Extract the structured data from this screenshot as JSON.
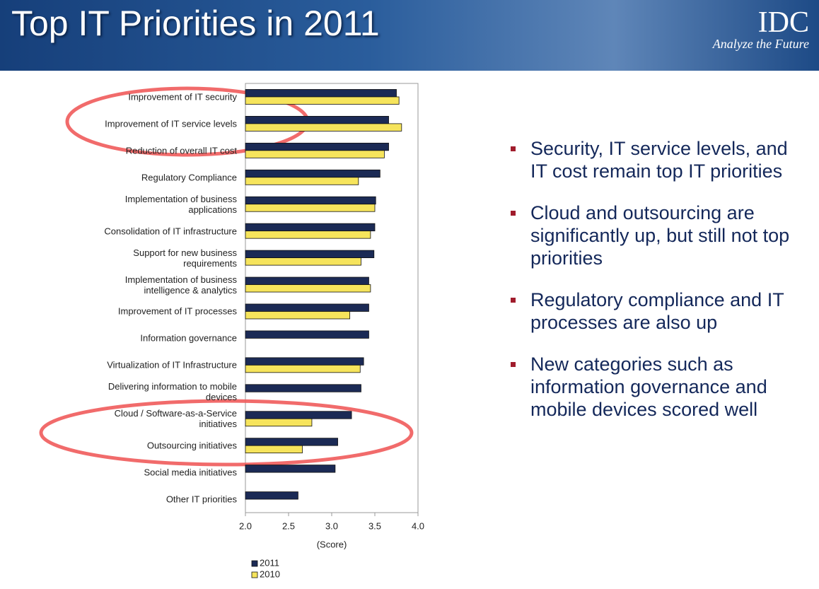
{
  "header": {
    "logo": "IDC",
    "tagline": "Analyze the Future"
  },
  "bullets": [
    "Security, IT service levels, and IT cost remain top IT priorities",
    "Cloud and outsourcing are significantly up, but still not top priorities",
    "Regulatory compliance and IT processes are also up",
    "New categories such as information governance and mobile devices scored well"
  ],
  "chart_data": {
    "type": "hbar",
    "title": "Top IT Priorities in 2011",
    "categories": [
      "Improvement of IT security",
      "Improvement of IT service levels",
      "Reduction of overall IT cost",
      "Regulatory Compliance",
      "Implementation of business applications",
      "Consolidation of IT infrastructure",
      "Support for new business requirements",
      "Implementation of business intelligence & analytics",
      "Improvement of IT processes",
      "Information governance",
      "Virtualization of IT Infrastructure",
      "Delivering information to mobile devices",
      "Cloud / Software-as-a-Service initiatives",
      "Outsourcing initiatives",
      "Social media initiatives",
      "Other IT priorities"
    ],
    "series": [
      {
        "name": "2011",
        "color": "#1b2a55",
        "values": [
          3.75,
          3.66,
          3.66,
          3.56,
          3.51,
          3.5,
          3.49,
          3.43,
          3.43,
          3.43,
          3.37,
          3.34,
          3.23,
          3.07,
          3.04,
          2.61
        ]
      },
      {
        "name": "2010",
        "color": "#f6e45c",
        "values": [
          3.78,
          3.81,
          3.61,
          3.31,
          3.5,
          3.45,
          3.34,
          3.45,
          3.21,
          null,
          3.33,
          null,
          2.77,
          2.66,
          null,
          null
        ]
      }
    ],
    "xlabel": "(Score)",
    "xlim": [
      2,
      4
    ],
    "xticks": [
      {
        "value": 2,
        "label": "2.0"
      },
      2.5,
      {
        "value": 3,
        "label": "3.0"
      },
      3.5,
      {
        "value": 4,
        "label": "4.0"
      }
    ]
  }
}
